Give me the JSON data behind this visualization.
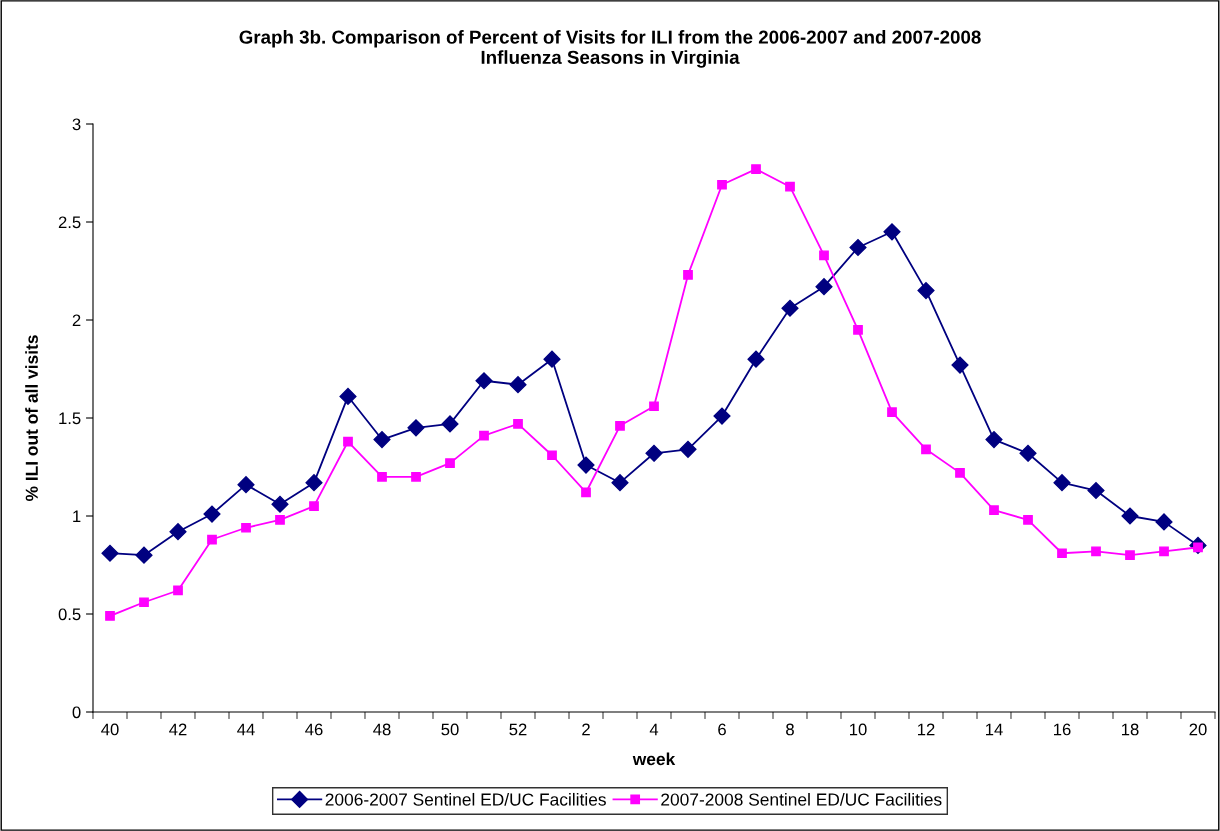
{
  "chart_data": {
    "type": "line",
    "title": "Graph 3b. Comparison of Percent of Visits for ILI from the 2006-2007 and 2007-2008\nInfluenza Seasons in Virginia",
    "xlabel": "week",
    "ylabel": "% ILI out of all visits",
    "categories": [
      "40",
      null,
      "42",
      null,
      "44",
      null,
      "46",
      null,
      "48",
      null,
      "50",
      null,
      "52",
      null,
      "2",
      null,
      "4",
      null,
      "6",
      null,
      "8",
      null,
      "10",
      null,
      "12",
      null,
      "14",
      null,
      "16",
      null,
      "18",
      null,
      "20"
    ],
    "series": [
      {
        "name": "2006-2007 Sentinel ED/UC Facilities",
        "color": "#000080",
        "marker": "diamond",
        "values": [
          0.81,
          0.8,
          0.92,
          1.01,
          1.16,
          1.06,
          1.17,
          1.61,
          1.39,
          1.45,
          1.47,
          1.69,
          1.67,
          1.8,
          1.26,
          1.17,
          1.32,
          1.34,
          1.51,
          1.8,
          2.06,
          2.17,
          2.37,
          2.45,
          2.15,
          1.77,
          1.39,
          1.32,
          1.17,
          1.13,
          1.0,
          0.97,
          0.85
        ]
      },
      {
        "name": "2007-2008 Sentinel ED/UC Facilities",
        "color": "#ff00ff",
        "marker": "square",
        "values": [
          0.49,
          0.56,
          0.62,
          0.88,
          0.94,
          0.98,
          1.05,
          1.38,
          1.2,
          1.2,
          1.27,
          1.41,
          1.47,
          1.31,
          1.12,
          1.46,
          1.56,
          2.23,
          2.69,
          2.77,
          2.68,
          2.33,
          1.95,
          1.53,
          1.34,
          1.22,
          1.03,
          0.98,
          0.81,
          0.82,
          0.8,
          0.82,
          0.84
        ]
      }
    ],
    "ylim": [
      0,
      3
    ],
    "yticks": [
      0,
      0.5,
      1,
      1.5,
      2,
      2.5,
      3
    ],
    "grid": false,
    "legend": "bottom",
    "line_style": "solid"
  }
}
